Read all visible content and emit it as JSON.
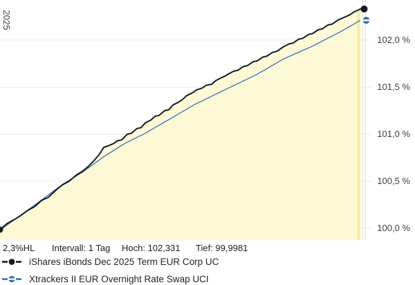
{
  "chart_data": {
    "type": "line",
    "title": "",
    "x_tick_label": "2025",
    "ylim": [
      99.875,
      102.4265
    ],
    "grid": true,
    "legend_position": "bottom",
    "y_ticks": [
      {
        "label": "102,0 %",
        "value": 102.0
      },
      {
        "label": "101,5 %",
        "value": 101.5
      },
      {
        "label": "101,0 %",
        "value": 101.0
      },
      {
        "label": "100,5 %",
        "value": 100.5
      },
      {
        "label": "100,0 %",
        "value": 100.0
      }
    ],
    "series": [
      {
        "name": "iShares iBonds Dec 2025 Term EUR Corp UC",
        "color": "#151a23",
        "marker": "filled-dot",
        "area_fill": true,
        "points": [
          [
            0,
            99.985
          ],
          [
            10,
            100.05
          ],
          [
            20,
            100.09
          ],
          [
            30,
            100.135
          ],
          [
            40,
            100.19
          ],
          [
            50,
            100.23
          ],
          [
            60,
            100.295
          ],
          [
            70,
            100.33
          ],
          [
            80,
            100.4
          ],
          [
            90,
            100.46
          ],
          [
            100,
            100.5
          ],
          [
            110,
            100.565
          ],
          [
            120,
            100.61
          ],
          [
            128,
            100.66
          ],
          [
            136,
            100.72
          ],
          [
            144,
            100.79
          ],
          [
            150,
            100.86
          ],
          [
            156,
            100.875
          ],
          [
            164,
            100.9
          ],
          [
            170,
            100.93
          ],
          [
            176,
            100.94
          ],
          [
            184,
            101.0
          ],
          [
            190,
            101.01
          ],
          [
            198,
            101.06
          ],
          [
            204,
            101.07
          ],
          [
            210,
            101.12
          ],
          [
            218,
            101.15
          ],
          [
            224,
            101.19
          ],
          [
            230,
            101.2
          ],
          [
            238,
            101.25
          ],
          [
            244,
            101.26
          ],
          [
            250,
            101.31
          ],
          [
            258,
            101.34
          ],
          [
            264,
            101.37
          ],
          [
            270,
            101.41
          ],
          [
            278,
            101.44
          ],
          [
            284,
            101.47
          ],
          [
            292,
            101.49
          ],
          [
            298,
            101.52
          ],
          [
            306,
            101.53
          ],
          [
            312,
            101.57
          ],
          [
            320,
            101.6
          ],
          [
            326,
            101.62
          ],
          [
            330,
            101.64
          ],
          [
            338,
            101.67
          ],
          [
            344,
            101.68
          ],
          [
            352,
            101.72
          ],
          [
            358,
            101.73
          ],
          [
            366,
            101.77
          ],
          [
            372,
            101.78
          ],
          [
            380,
            101.82
          ],
          [
            386,
            101.83
          ],
          [
            394,
            101.87
          ],
          [
            400,
            101.88
          ],
          [
            410,
            101.93
          ],
          [
            418,
            101.96
          ],
          [
            424,
            101.97
          ],
          [
            432,
            102.01
          ],
          [
            438,
            102.02
          ],
          [
            446,
            102.06
          ],
          [
            452,
            102.07
          ],
          [
            460,
            102.11
          ],
          [
            466,
            102.12
          ],
          [
            474,
            102.16
          ],
          [
            480,
            102.17
          ],
          [
            488,
            102.21
          ],
          [
            494,
            102.23
          ],
          [
            500,
            102.25
          ],
          [
            506,
            102.27
          ],
          [
            512,
            102.3
          ],
          [
            521,
            102.331
          ]
        ]
      },
      {
        "name": "Xtrackers II EUR Overnight Rate Swap UCI",
        "color": "#3a6db4",
        "marker": "split-dot",
        "area_fill": false,
        "points": [
          [
            0,
            99.98
          ],
          [
            30,
            100.14
          ],
          [
            60,
            100.3
          ],
          [
            90,
            100.465
          ],
          [
            120,
            100.6
          ],
          [
            150,
            100.76
          ],
          [
            180,
            100.9
          ],
          [
            210,
            101.01
          ],
          [
            250,
            101.18
          ],
          [
            280,
            101.31
          ],
          [
            330,
            101.49
          ],
          [
            370,
            101.63
          ],
          [
            410,
            101.8
          ],
          [
            450,
            101.93
          ],
          [
            490,
            102.08
          ],
          [
            521,
            102.21
          ]
        ]
      }
    ],
    "colors": {
      "fill": "#fdf9d6",
      "fill_edge": "#f7eea0",
      "grid": "#e9e9e9",
      "vline": "#dcdcdc"
    }
  },
  "stats_bar": {
    "hl": "2,3%HL",
    "interval": "Intervall: 1 Tag",
    "high": "Hoch: 102,331",
    "low": "Tief: 99,9981"
  }
}
